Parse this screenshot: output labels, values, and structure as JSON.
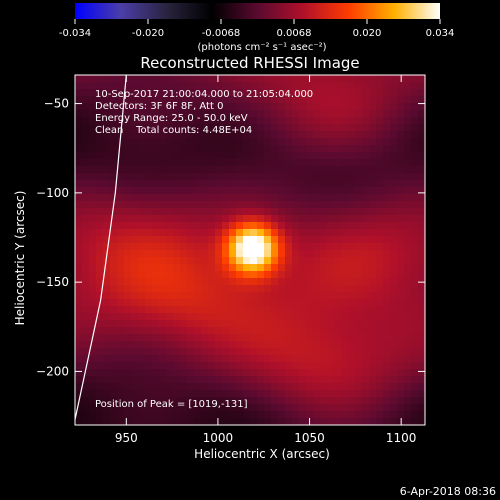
{
  "colorbar": {
    "ticks": [
      "-0.034",
      "-0.020",
      "-0.0068",
      "0.0068",
      "0.020",
      "0.034"
    ],
    "unit_label": "(photons cm⁻² s⁻¹ asec⁻²)"
  },
  "chart_data": {
    "type": "heatmap",
    "title": "Reconstructed RHESSI Image",
    "xlabel": "Heliocentric X (arcsec)",
    "ylabel": "Heliocentric Y (arcsec)",
    "xlim": [
      922,
      1113
    ],
    "ylim": [
      -230,
      -34
    ],
    "xticks": [
      950,
      1000,
      1050,
      1100
    ],
    "yticks": [
      -50,
      -100,
      -150,
      -200
    ],
    "color_range": [
      -0.034,
      0.034
    ],
    "colormap": [
      "#0000ff",
      "#4b3ea8",
      "#2a2440",
      "#000000",
      "#5a0a30",
      "#b0102a",
      "#ff3c00",
      "#ffb000",
      "#ffffff"
    ],
    "peak": [
      1019,
      -131
    ],
    "sources": [
      {
        "x": 1019,
        "y": -131,
        "value": 0.034
      },
      {
        "x": 1060,
        "y": -198,
        "value": 0.016
      },
      {
        "x": 1060,
        "y": -52,
        "value": 0.012
      },
      {
        "x": 955,
        "y": -120,
        "value": 0.011
      },
      {
        "x": 985,
        "y": -160,
        "value": 0.01
      },
      {
        "x": 1085,
        "y": -125,
        "value": 0.009
      }
    ],
    "annotations": [
      "10-Sep-2017 21:00:04.000 to 21:05:04.000",
      "Detectors: 3F 6F 8F, Att 0",
      "Energy Range: 25.0 - 50.0 keV",
      "Clean    Total counts: 4.48E+04"
    ],
    "peak_label": "Position of Peak = [1019,-131]",
    "limb_curve": [
      [
        922,
        -227
      ],
      [
        936,
        -160
      ],
      [
        944,
        -100
      ],
      [
        950,
        -34
      ]
    ]
  },
  "footer": {
    "date": "6-Apr-2018 08:36"
  }
}
